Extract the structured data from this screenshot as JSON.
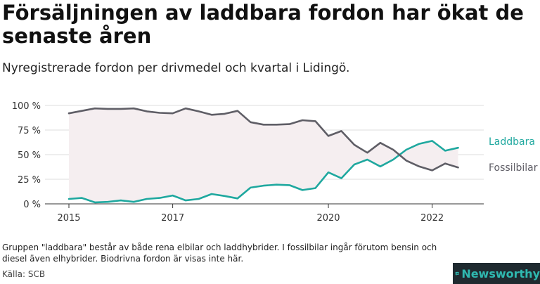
{
  "title": "Försäljningen av laddbara fordon har ökat de senaste åren",
  "subtitle": "Nyregistrerade fordon per drivmedel och kvartal i Lidingö.",
  "note": "Gruppen \"laddbara\" består av både rena elbilar och laddhybrider. I fossilbilar ingår förutom bensin och diesel även elhybrider. Biodrivna fordon är visas inte här.",
  "source": "Källa: SCB",
  "brand": {
    "name": "Newsworthy",
    "icon": "newsworthy-logo-icon"
  },
  "colors": {
    "laddbara": "#1fa89f",
    "fossil": "#5f5e66",
    "area": "#f5eef0",
    "grid": "#dddddd",
    "axis": "#333333",
    "brand_bg": "#1f2a30",
    "brand_text": "#2fb8b0"
  },
  "chart_data": {
    "type": "line",
    "xlabel": "",
    "ylabel": "",
    "ylim": [
      0,
      100
    ],
    "y_ticks": [
      "0 %",
      "25 %",
      "50 %",
      "75 %",
      "100 %"
    ],
    "x_ticks": [
      "2015",
      "2017",
      "2020",
      "2022"
    ],
    "grid": true,
    "legend": "right end of lines",
    "x": [
      "2015-Q1",
      "2015-Q2",
      "2015-Q3",
      "2015-Q4",
      "2016-Q1",
      "2016-Q2",
      "2016-Q3",
      "2016-Q4",
      "2017-Q1",
      "2017-Q2",
      "2017-Q3",
      "2017-Q4",
      "2018-Q1",
      "2018-Q2",
      "2018-Q3",
      "2018-Q4",
      "2019-Q1",
      "2019-Q2",
      "2019-Q3",
      "2019-Q4",
      "2020-Q1",
      "2020-Q2",
      "2020-Q3",
      "2020-Q4",
      "2021-Q1",
      "2021-Q2",
      "2021-Q3",
      "2021-Q4",
      "2022-Q1",
      "2022-Q2",
      "2022-Q3",
      "2022-Q4"
    ],
    "series": [
      {
        "name": "Laddbara",
        "values": [
          5,
          6,
          1.5,
          2,
          3.5,
          2,
          5,
          6,
          8.5,
          3.5,
          5,
          10,
          8,
          5.5,
          16.5,
          18.5,
          19.5,
          19,
          14,
          16,
          32,
          26,
          40,
          45,
          38,
          45,
          55,
          61,
          64,
          54,
          57,
          null
        ]
      },
      {
        "name": "Fossilbilar",
        "values": [
          92,
          94.5,
          97,
          96.5,
          96.5,
          97,
          94,
          92.5,
          92,
          97,
          94,
          90.5,
          91.5,
          94.5,
          83,
          80.5,
          80.5,
          81,
          85,
          84,
          69,
          74,
          60,
          52,
          62,
          55,
          44,
          38,
          34,
          41,
          37,
          null
        ]
      }
    ]
  }
}
